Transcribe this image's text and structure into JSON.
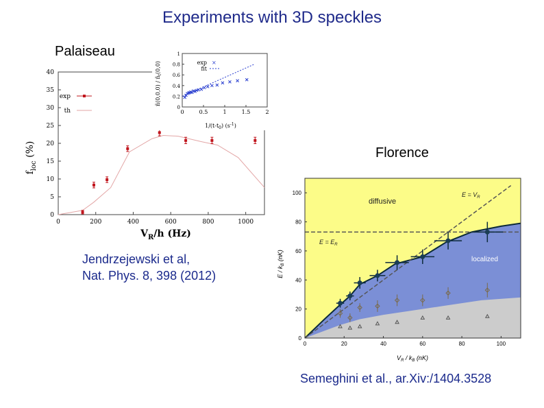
{
  "slide": {
    "title": "Experiments with 3D speckles",
    "label_left": "Palaiseau",
    "label_right": "Florence",
    "citation_left_line1": "Jendrzejewski et al,",
    "citation_left_line2": "Nat. Phys. 8, 398 (2012)",
    "citation_right": "Semeghini et al., ar.Xiv:/1404.3528"
  },
  "colors": {
    "title": "#1f2a8a",
    "citation": "#1b2a8c",
    "exp_points": "#c0141c",
    "theory_line": "#e3a6a6",
    "diffusive_region": "#fcfc88",
    "localized_region": "#7b8fd6",
    "bottom_region": "#cccccc",
    "mobility_edge": "#0c2a3a"
  },
  "chart_data": [
    {
      "type": "scatter",
      "id": "palaiseau-main",
      "xlabel": "V",
      "xlabel_sub": "R",
      "xlabel_rest": "/h (Hz)",
      "ylabel": "f",
      "ylabel_sub": "loc",
      "ylabel_rest": " (%)",
      "xlim": [
        0,
        1100
      ],
      "ylim": [
        0,
        40
      ],
      "x_ticks": [
        0,
        200,
        400,
        600,
        800,
        1000
      ],
      "y_ticks": [
        0,
        5,
        10,
        15,
        20,
        25,
        30,
        35,
        40
      ],
      "legend": {
        "placement": "upper-left",
        "entries": [
          "exp",
          "th"
        ]
      },
      "series": [
        {
          "name": "exp",
          "x": [
            130,
            190,
            260,
            370,
            540,
            680,
            820,
            1050
          ],
          "y": [
            0.7,
            8.3,
            9.8,
            18.5,
            23.0,
            20.8,
            20.8,
            20.8
          ],
          "yerr": [
            0.5,
            0.8,
            0.8,
            0.8,
            0.9,
            0.9,
            0.9,
            0.9
          ]
        },
        {
          "name": "th",
          "x": [
            0,
            130,
            190,
            280,
            380,
            500,
            560,
            640,
            760,
            850,
            960,
            1100
          ],
          "y": [
            0,
            1.2,
            3.5,
            7.6,
            17.6,
            21.3,
            22.2,
            22.0,
            20.5,
            19.5,
            16.0,
            7.6
          ]
        }
      ]
    },
    {
      "type": "scatter",
      "id": "palaiseau-inset",
      "xlabel": "1/(t-t",
      "xlabel_sub": "0",
      "xlabel_rest": ")   (s",
      "xlabel_sup": "-1",
      "xlabel_end": ")",
      "ylabel": "ñ(0,0,0) / ñ",
      "ylabel_sub": "t",
      "ylabel_rest": "(0,0)",
      "xlim": [
        0,
        2
      ],
      "ylim": [
        0,
        1
      ],
      "x_ticks": [
        0,
        0.5,
        1,
        1.5,
        2
      ],
      "y_ticks": [
        0,
        0.2,
        0.4,
        0.6,
        0.8,
        1
      ],
      "legend": {
        "placement": "top",
        "entries": [
          "exp",
          "fit"
        ]
      },
      "series": [
        {
          "name": "exp",
          "x": [
            0.06,
            0.09,
            0.12,
            0.15,
            0.17,
            0.2,
            0.23,
            0.26,
            0.3,
            0.34,
            0.38,
            0.45,
            0.52,
            0.6,
            0.7,
            0.82,
            0.95,
            1.12,
            1.3,
            1.52
          ],
          "y": [
            0.18,
            0.22,
            0.25,
            0.26,
            0.27,
            0.28,
            0.27,
            0.3,
            0.29,
            0.31,
            0.32,
            0.33,
            0.36,
            0.38,
            0.4,
            0.41,
            0.45,
            0.47,
            0.49,
            0.51
          ]
        },
        {
          "name": "fit",
          "x": [
            0,
            1.7
          ],
          "y": [
            0.2,
            0.8
          ]
        }
      ]
    },
    {
      "type": "scatter",
      "id": "florence",
      "xlabel": "V",
      "xlabel_sub": "R",
      "xlabel_mid": " / k",
      "xlabel_sub2": "B",
      "xlabel_rest": " (nK)",
      "ylabel": "E / k",
      "ylabel_sub": "B",
      "ylabel_rest": " (nK)",
      "xlim": [
        0,
        110
      ],
      "ylim": [
        0,
        110
      ],
      "x_ticks": [
        0,
        20,
        40,
        60,
        80,
        100
      ],
      "y_ticks": [
        0,
        20,
        40,
        60,
        80,
        100
      ],
      "annotations": {
        "diffusive": "diffusive",
        "localized": "localized",
        "e_eq_vr": "E = V",
        "e_eq_vr_sub": "R",
        "e_eq_er": "E = E",
        "e_eq_er_sub": "R"
      },
      "mobility_edge": {
        "x": [
          0,
          10,
          18,
          23,
          28,
          37,
          46,
          60,
          72,
          85,
          100,
          110
        ],
        "y": [
          0,
          13,
          23,
          29,
          37,
          43,
          51,
          56,
          66,
          73,
          77,
          79
        ]
      },
      "bottom_boundary": {
        "x": [
          0,
          18,
          28,
          40,
          55,
          70,
          90,
          110
        ],
        "y": [
          0,
          9,
          13,
          16,
          19,
          22,
          26,
          28
        ]
      },
      "series": [
        {
          "name": "mobility edge",
          "x": [
            18,
            23,
            28,
            37,
            47,
            60,
            73,
            93
          ],
          "y": [
            24,
            29,
            38,
            43,
            52,
            56,
            67,
            73
          ],
          "xerr": [
            2,
            2,
            3,
            4,
            6,
            6,
            7,
            8
          ],
          "yerr": [
            3,
            3,
            4,
            4,
            5,
            5,
            6,
            7
          ]
        },
        {
          "name": "diamonds",
          "x": [
            18,
            23,
            28,
            37,
            47,
            60,
            73,
            93
          ],
          "y": [
            17,
            14,
            21,
            22,
            26,
            26,
            31,
            33
          ],
          "yerr": [
            3,
            3,
            3,
            4,
            4,
            4,
            4,
            5
          ]
        },
        {
          "name": "triangles",
          "x": [
            18,
            23,
            28,
            37,
            47,
            60,
            73,
            93
          ],
          "y": [
            8,
            7,
            8,
            10,
            11,
            14,
            14,
            15
          ]
        }
      ],
      "e_r_level": 73,
      "e_eq_vr_line": {
        "x": [
          0,
          105
        ],
        "y": [
          0,
          105
        ]
      }
    }
  ]
}
